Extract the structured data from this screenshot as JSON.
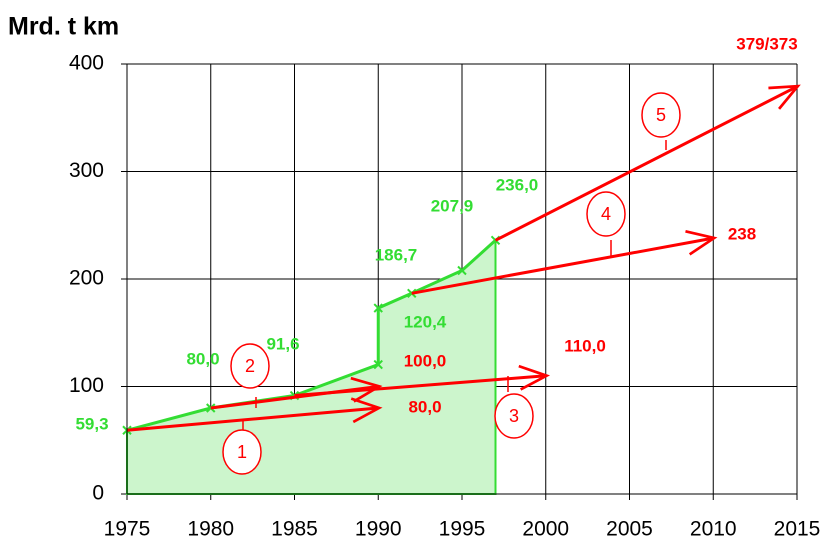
{
  "chart_data": {
    "type": "line",
    "title": "Mrd. t km",
    "xlim": [
      1975,
      2015
    ],
    "xticks": [
      1975,
      1980,
      1985,
      1990,
      1995,
      2000,
      2005,
      2010,
      2015
    ],
    "ylim": [
      0,
      400
    ],
    "yticks": [
      0,
      100,
      200,
      300,
      400
    ],
    "grid": true,
    "series": [
      {
        "color": "#33dd33",
        "fill": "#ccf5cc",
        "area": true,
        "x": [
          1975,
          1980,
          1985,
          1990,
          1990,
          1992,
          1995,
          1997
        ],
        "values": [
          59.3,
          80.0,
          91.6,
          120.4,
          173,
          186.7,
          207.9,
          236.0
        ],
        "value_labels": [
          "59,3",
          "80,0",
          "91,6",
          "120,4",
          null,
          "186,7",
          "207,9",
          "236,0"
        ]
      },
      {
        "name": "1",
        "color": "#ff0000",
        "x": [
          1975,
          1990
        ],
        "values": [
          59.3,
          80.0
        ],
        "value_labels": [
          null,
          "80,0"
        ]
      },
      {
        "name": "2",
        "color": "#ff0000",
        "x": [
          1980,
          1990
        ],
        "values": [
          80.0,
          100.0
        ],
        "value_labels": [
          null,
          "100,0"
        ]
      },
      {
        "name": "3",
        "color": "#ff0000",
        "x": [
          1985,
          2000
        ],
        "values": [
          91.6,
          110.0
        ],
        "value_labels": [
          null,
          "110,0"
        ]
      },
      {
        "name": "4",
        "color": "#ff0000",
        "x": [
          1992,
          2010
        ],
        "values": [
          186.7,
          238
        ],
        "value_labels": [
          null,
          "238"
        ]
      },
      {
        "name": "5",
        "color": "#ff0000",
        "x": [
          1997,
          2015
        ],
        "values": [
          236.0,
          379
        ],
        "value_labels": [
          null,
          "379/373"
        ]
      }
    ]
  }
}
